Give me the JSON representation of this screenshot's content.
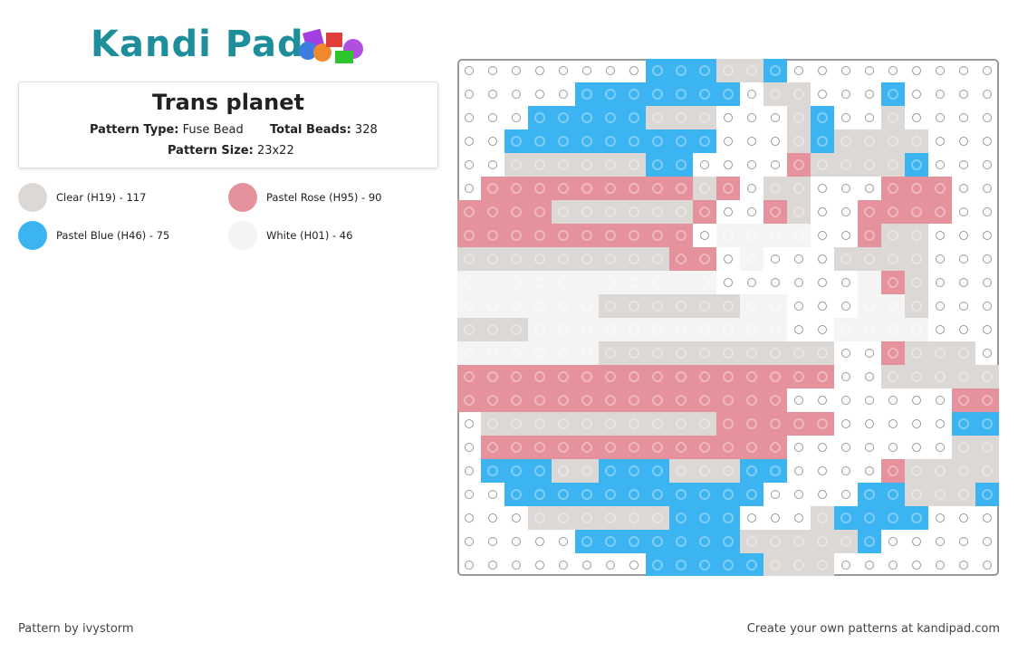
{
  "header": {
    "logo": "Kandi Pad"
  },
  "pattern": {
    "title": "Trans planet",
    "type_label": "Pattern Type:",
    "type_value": "Fuse Bead",
    "beads_label": "Total Beads:",
    "beads_value": "328",
    "size_label": "Pattern Size:",
    "size_value": "23x22"
  },
  "legend": [
    {
      "label": "Clear (H19) - 117",
      "color": "#dcd8d6"
    },
    {
      "label": "Pastel Rose (H95) - 90",
      "color": "#e5929c"
    },
    {
      "label": "Pastel Blue (H46) - 75",
      "color": "#3db4f2"
    },
    {
      "label": "White (H01) - 46",
      "color": "#f4f4f4"
    }
  ],
  "footer": {
    "left": "Pattern by ivystorm",
    "right": "Create your own patterns at kandipad.com"
  }
}
